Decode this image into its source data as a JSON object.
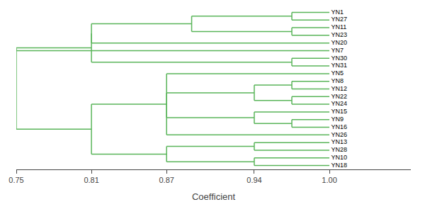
{
  "chart_data": {
    "type": "dendrogram",
    "categories": [
      "YN1",
      "YN27",
      "YN11",
      "YN23",
      "YN20",
      "YN7",
      "YN30",
      "YN31",
      "YN5",
      "YN8",
      "YN12",
      "YN22",
      "YN24",
      "YN15",
      "YN9",
      "YN16",
      "YN26",
      "YN13",
      "YN28",
      "YN10",
      "YN18"
    ],
    "color": "#5ab55a",
    "xlabel": "Coefficient",
    "xlim": [
      0.75,
      1.065
    ],
    "xticks": [
      0.75,
      0.81,
      0.87,
      0.94,
      {
        "value": 1.0,
        "label": "1.00"
      }
    ],
    "grid": false,
    "tick_labels": "x",
    "segments": [
      {
        "x": [
          0.97,
          1.0
        ],
        "y": [
          0,
          0
        ]
      },
      {
        "x": [
          0.97,
          1.0
        ],
        "y": [
          1,
          1
        ]
      },
      {
        "x": [
          0.97,
          0.97
        ],
        "y": [
          1,
          0
        ]
      },
      {
        "x": [
          0.97,
          1.0
        ],
        "y": [
          2,
          2
        ]
      },
      {
        "x": [
          0.97,
          1.0
        ],
        "y": [
          3,
          3
        ]
      },
      {
        "x": [
          0.97,
          0.97
        ],
        "y": [
          3,
          2
        ]
      },
      {
        "x": [
          0.89,
          0.97
        ],
        "y": [
          0.5,
          0.5
        ]
      },
      {
        "x": [
          0.89,
          0.97
        ],
        "y": [
          2.5,
          2.5
        ]
      },
      {
        "x": [
          0.89,
          0.89
        ],
        "y": [
          2.5,
          0.5
        ]
      },
      {
        "x": [
          0.81,
          1.0
        ],
        "y": [
          4,
          4
        ]
      },
      {
        "x": [
          0.81,
          0.89
        ],
        "y": [
          1.5,
          1.5
        ]
      },
      {
        "x": [
          0.81,
          0.81
        ],
        "y": [
          4,
          1.5
        ]
      },
      {
        "x": [
          0.97,
          1.0
        ],
        "y": [
          6,
          6
        ]
      },
      {
        "x": [
          0.97,
          1.0
        ],
        "y": [
          7,
          7
        ]
      },
      {
        "x": [
          0.97,
          0.97
        ],
        "y": [
          7,
          6
        ]
      },
      {
        "x": [
          0.81,
          0.97
        ],
        "y": [
          6.5,
          6.5
        ]
      },
      {
        "x": [
          0.81,
          0.81
        ],
        "y": [
          2.75,
          6.5
        ]
      },
      {
        "x": [
          0.75,
          1.0
        ],
        "y": [
          5,
          5
        ]
      },
      {
        "x": [
          0.75,
          0.81
        ],
        "y": [
          4.625,
          4.625
        ]
      },
      {
        "x": [
          0.75,
          0.75
        ],
        "y": [
          5,
          4.625
        ]
      },
      {
        "x": [
          0.97,
          1.0
        ],
        "y": [
          9,
          9
        ]
      },
      {
        "x": [
          0.97,
          1.0
        ],
        "y": [
          10,
          10
        ]
      },
      {
        "x": [
          0.97,
          0.97
        ],
        "y": [
          10,
          9
        ]
      },
      {
        "x": [
          0.97,
          1.0
        ],
        "y": [
          11,
          11
        ]
      },
      {
        "x": [
          0.97,
          1.0
        ],
        "y": [
          12,
          12
        ]
      },
      {
        "x": [
          0.97,
          0.97
        ],
        "y": [
          12,
          11
        ]
      },
      {
        "x": [
          0.94,
          0.97
        ],
        "y": [
          9.5,
          9.5
        ]
      },
      {
        "x": [
          0.94,
          0.97
        ],
        "y": [
          11.5,
          11.5
        ]
      },
      {
        "x": [
          0.94,
          0.94
        ],
        "y": [
          11.5,
          9.5
        ]
      },
      {
        "x": [
          0.94,
          1.0
        ],
        "y": [
          13,
          13
        ]
      },
      {
        "x": [
          0.97,
          1.0
        ],
        "y": [
          14,
          14
        ]
      },
      {
        "x": [
          0.97,
          1.0
        ],
        "y": [
          15,
          15
        ]
      },
      {
        "x": [
          0.97,
          0.97
        ],
        "y": [
          15,
          14
        ]
      },
      {
        "x": [
          0.94,
          0.97
        ],
        "y": [
          14.5,
          14.5
        ]
      },
      {
        "x": [
          0.94,
          0.94
        ],
        "y": [
          14.5,
          13
        ]
      },
      {
        "x": [
          0.87,
          0.94
        ],
        "y": [
          10.5,
          10.5
        ]
      },
      {
        "x": [
          0.87,
          0.94
        ],
        "y": [
          13.75,
          13.75
        ]
      },
      {
        "x": [
          0.87,
          0.87
        ],
        "y": [
          13.75,
          10.5
        ]
      },
      {
        "x": [
          0.87,
          1.0
        ],
        "y": [
          16,
          16
        ]
      },
      {
        "x": [
          0.87,
          1.0
        ],
        "y": [
          8,
          8
        ]
      },
      {
        "x": [
          0.87,
          0.87
        ],
        "y": [
          16,
          8
        ]
      },
      {
        "x": [
          0.94,
          1.0
        ],
        "y": [
          17,
          17
        ]
      },
      {
        "x": [
          0.94,
          1.0
        ],
        "y": [
          18,
          18
        ]
      },
      {
        "x": [
          0.94,
          0.94
        ],
        "y": [
          18,
          17
        ]
      },
      {
        "x": [
          0.87,
          0.94
        ],
        "y": [
          17.5,
          17.5
        ]
      },
      {
        "x": [
          0.94,
          1.0
        ],
        "y": [
          19,
          19
        ]
      },
      {
        "x": [
          0.94,
          1.0
        ],
        "y": [
          20,
          20
        ]
      },
      {
        "x": [
          0.94,
          0.94
        ],
        "y": [
          20,
          19
        ]
      },
      {
        "x": [
          0.87,
          0.94
        ],
        "y": [
          19.5,
          19.5
        ]
      },
      {
        "x": [
          0.87,
          0.87
        ],
        "y": [
          19.5,
          17.5
        ]
      },
      {
        "x": [
          0.81,
          0.87
        ],
        "y": [
          12,
          12
        ]
      },
      {
        "x": [
          0.81,
          0.87
        ],
        "y": [
          18.5,
          18.5
        ]
      },
      {
        "x": [
          0.81,
          0.81
        ],
        "y": [
          18.5,
          12
        ]
      },
      {
        "x": [
          0.75,
          0.81
        ],
        "y": [
          15.25,
          15.25
        ]
      },
      {
        "x": [
          0.75,
          0.75
        ],
        "y": [
          15.25,
          4.8125
        ]
      }
    ]
  }
}
